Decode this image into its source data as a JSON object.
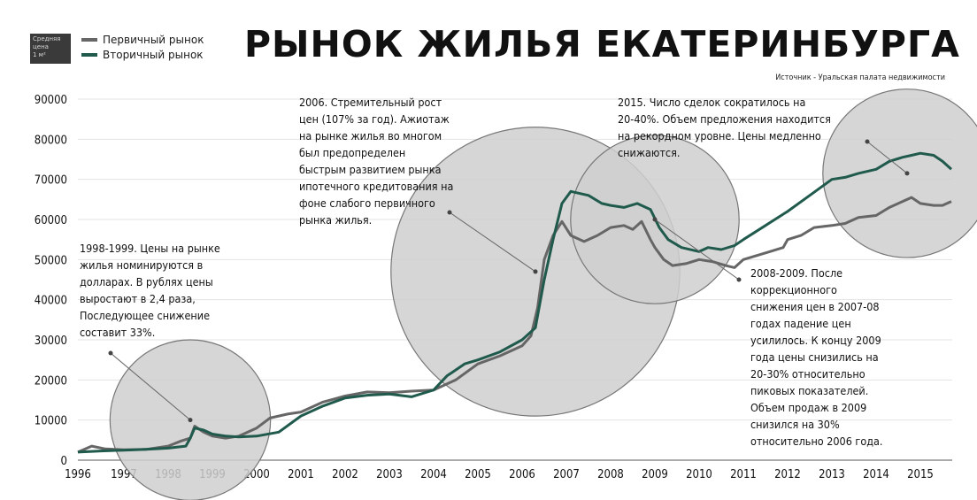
{
  "chart_data": {
    "type": "line",
    "title": "РЫНОК ЖИЛЬЯ ЕКАТЕРИНБУРГА",
    "source": "Источник - Уральская палата недвижимости",
    "unit_badge": [
      "Средняя",
      "цена",
      "1 м²"
    ],
    "xlabel": "",
    "ylabel": "",
    "xlim": [
      1996,
      2015.8
    ],
    "ylim": [
      0,
      90000
    ],
    "x_ticks": [
      "1996",
      "1997",
      "1998",
      "1999",
      "2000",
      "2001",
      "2002",
      "2003",
      "2004",
      "2005",
      "2006",
      "2007",
      "2008",
      "2009",
      "2010",
      "2011",
      "2012",
      "2013",
      "2014",
      "2015"
    ],
    "y_ticks": [
      "0",
      "10000",
      "20000",
      "30000",
      "40000",
      "50000",
      "60000",
      "70000",
      "80000",
      "90000"
    ],
    "grid": true,
    "legend_position": "top-left",
    "series": [
      {
        "name": "Первичный рынок",
        "color": "#666666",
        "points": [
          [
            1996.0,
            2000
          ],
          [
            1996.3,
            3500
          ],
          [
            1996.6,
            2800
          ],
          [
            1997.0,
            2600
          ],
          [
            1997.5,
            2700
          ],
          [
            1998.0,
            3500
          ],
          [
            1998.3,
            4800
          ],
          [
            1998.5,
            5500
          ],
          [
            1998.6,
            8500
          ],
          [
            1998.8,
            7000
          ],
          [
            1999.0,
            6000
          ],
          [
            1999.3,
            5500
          ],
          [
            1999.6,
            6000
          ],
          [
            2000.0,
            8000
          ],
          [
            2000.3,
            10500
          ],
          [
            2000.7,
            11500
          ],
          [
            2001.0,
            12000
          ],
          [
            2001.5,
            14500
          ],
          [
            2002.0,
            16000
          ],
          [
            2002.5,
            17000
          ],
          [
            2003.0,
            16800
          ],
          [
            2003.5,
            17200
          ],
          [
            2004.0,
            17500
          ],
          [
            2004.5,
            20000
          ],
          [
            2005.0,
            24000
          ],
          [
            2005.5,
            26000
          ],
          [
            2006.0,
            28500
          ],
          [
            2006.2,
            31000
          ],
          [
            2006.35,
            38000
          ],
          [
            2006.5,
            50000
          ],
          [
            2006.7,
            56000
          ],
          [
            2006.9,
            59500
          ],
          [
            2007.1,
            56000
          ],
          [
            2007.4,
            54500
          ],
          [
            2007.7,
            56000
          ],
          [
            2008.0,
            58000
          ],
          [
            2008.3,
            58500
          ],
          [
            2008.5,
            57500
          ],
          [
            2008.7,
            59500
          ],
          [
            2008.9,
            55000
          ],
          [
            2009.0,
            53000
          ],
          [
            2009.2,
            50000
          ],
          [
            2009.4,
            48500
          ],
          [
            2009.7,
            49000
          ],
          [
            2010.0,
            50000
          ],
          [
            2010.3,
            49500
          ],
          [
            2010.6,
            48500
          ],
          [
            2010.8,
            48000
          ],
          [
            2011.0,
            50000
          ],
          [
            2011.3,
            51000
          ],
          [
            2011.6,
            52000
          ],
          [
            2011.9,
            53000
          ],
          [
            2012.0,
            55000
          ],
          [
            2012.3,
            56000
          ],
          [
            2012.6,
            58000
          ],
          [
            2013.0,
            58500
          ],
          [
            2013.3,
            59000
          ],
          [
            2013.6,
            60500
          ],
          [
            2014.0,
            61000
          ],
          [
            2014.3,
            63000
          ],
          [
            2014.6,
            64500
          ],
          [
            2014.8,
            65500
          ],
          [
            2015.0,
            64000
          ],
          [
            2015.3,
            63500
          ],
          [
            2015.5,
            63500
          ],
          [
            2015.7,
            64500
          ]
        ]
      },
      {
        "name": "Вторичный рынок",
        "color": "#1f5a4c",
        "points": [
          [
            1996.0,
            2000
          ],
          [
            1996.5,
            2300
          ],
          [
            1997.0,
            2500
          ],
          [
            1997.5,
            2700
          ],
          [
            1998.0,
            3000
          ],
          [
            1998.4,
            3500
          ],
          [
            1998.5,
            5500
          ],
          [
            1998.6,
            8000
          ],
          [
            1998.8,
            7500
          ],
          [
            1999.0,
            6500
          ],
          [
            1999.3,
            6000
          ],
          [
            1999.6,
            5800
          ],
          [
            2000.0,
            6000
          ],
          [
            2000.5,
            7000
          ],
          [
            2001.0,
            11000
          ],
          [
            2001.5,
            13500
          ],
          [
            2002.0,
            15500
          ],
          [
            2002.5,
            16200
          ],
          [
            2003.0,
            16500
          ],
          [
            2003.5,
            15800
          ],
          [
            2004.0,
            17500
          ],
          [
            2004.3,
            21000
          ],
          [
            2004.7,
            24000
          ],
          [
            2005.0,
            25000
          ],
          [
            2005.5,
            27000
          ],
          [
            2006.0,
            30000
          ],
          [
            2006.3,
            33000
          ],
          [
            2006.5,
            45000
          ],
          [
            2006.7,
            55000
          ],
          [
            2006.9,
            64000
          ],
          [
            2007.1,
            67000
          ],
          [
            2007.5,
            66000
          ],
          [
            2007.8,
            64000
          ],
          [
            2008.0,
            63500
          ],
          [
            2008.3,
            63000
          ],
          [
            2008.6,
            64000
          ],
          [
            2008.9,
            62500
          ],
          [
            2009.1,
            58000
          ],
          [
            2009.3,
            55000
          ],
          [
            2009.6,
            53000
          ],
          [
            2010.0,
            52000
          ],
          [
            2010.2,
            53000
          ],
          [
            2010.5,
            52500
          ],
          [
            2010.8,
            53500
          ],
          [
            2011.0,
            55000
          ],
          [
            2011.5,
            58500
          ],
          [
            2012.0,
            62000
          ],
          [
            2012.5,
            66000
          ],
          [
            2013.0,
            70000
          ],
          [
            2013.3,
            70500
          ],
          [
            2013.6,
            71500
          ],
          [
            2014.0,
            72500
          ],
          [
            2014.3,
            74500
          ],
          [
            2014.6,
            75500
          ],
          [
            2014.8,
            76000
          ],
          [
            2015.0,
            76500
          ],
          [
            2015.3,
            76000
          ],
          [
            2015.5,
            74500
          ],
          [
            2015.7,
            72500
          ]
        ]
      }
    ],
    "annotations": [
      {
        "text": "1998-1999. Цены на рынке\nжилья номинируются в\nдолларах. В рублях цены\nвыростают в 2,4 раза,\nПоследующее снижение\nсоставит 33%.",
        "point": [
          1998.5,
          10000
        ],
        "circle_r": 20000
      },
      {
        "text": "2006. Стремительный рост\nцен (107% за год). Ажиотаж\nна рынке жилья во многом\nбыл предопределен\nбыстрым развитием рынка\nипотечного кредитования на\nфоне слабого первичного\nрынка жилья.",
        "point": [
          2006.3,
          47000
        ],
        "circle_r": 36000
      },
      {
        "text": "2015. Число сделок сократилось на\n20-40%. Объем предложения находится\nна рекордном уровне. Цены медленно\nснижаются.",
        "point": [
          2014.7,
          71500
        ],
        "circle_r": 21000
      },
      {
        "text": "2008-2009. После\nкоррекционного\nснижения цен в 2007-08\nгодах падение цен\nусилилось. К концу 2009\nгода цены снизились на\n20-30% относительно\nпиковых показателей.\nОбъем продаж в 2009\nснизился на 30%\nотносительно 2006 года.",
        "point": [
          2009.0,
          60000
        ],
        "circle_r": 21000
      }
    ]
  }
}
